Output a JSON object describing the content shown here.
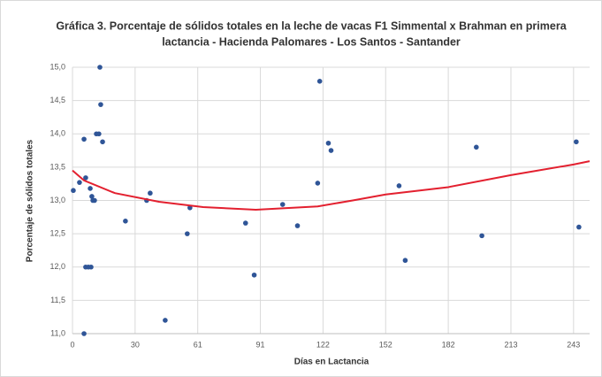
{
  "chart_data": {
    "type": "scatter",
    "title": [
      "Gráfica 3. Porcentaje de sólidos totales en la leche de vacas F1 Simmental  x Brahman en primera",
      "lactancia - Hacienda Palomares - Los Santos - Santander"
    ],
    "x_label": "Días en Lactancia",
    "y_label": "Porcentaje de sólidos totales",
    "xlim": [
      0,
      251
    ],
    "ylim": [
      11,
      15
    ],
    "xticks": [
      0,
      {
        "value": 30.4,
        "label": "30"
      },
      {
        "value": 60.8,
        "label": "61"
      },
      {
        "value": 91.2,
        "label": "91"
      },
      {
        "value": 121.6,
        "label": "122"
      },
      152,
      {
        "value": 182.4,
        "label": "182"
      },
      {
        "value": 212.8,
        "label": "213"
      },
      {
        "value": 243.2,
        "label": "243"
      }
    ],
    "yticks": [
      {
        "value": 11,
        "label": "11,0"
      },
      {
        "value": 11.5,
        "label": "11,5"
      },
      {
        "value": 12,
        "label": "12,0"
      },
      {
        "value": 12.5,
        "label": "12,5"
      },
      {
        "value": 13,
        "label": "13,0"
      },
      {
        "value": 13.5,
        "label": "13,5"
      },
      {
        "value": 14,
        "label": "14,0"
      },
      {
        "value": 14.5,
        "label": "14,5"
      },
      {
        "value": 15,
        "label": "15,0"
      }
    ],
    "grid": true,
    "color": "#2f5597",
    "x": [
      0.4,
      3.4,
      5.6,
      6.4,
      5.6,
      6.4,
      7.7,
      9,
      8.6,
      9.4,
      9.9,
      10.7,
      11.6,
      12.8,
      13.3,
      13.7,
      14.6,
      25.7,
      36,
      37.7,
      45,
      55.7,
      57,
      84,
      88.2,
      102,
      109.2,
      119,
      120,
      124.2,
      125.5,
      158.5,
      161.5,
      196,
      198.7,
      244.5,
      245.8
    ],
    "values": [
      13.15,
      13.27,
      13.92,
      13.34,
      11.0,
      12.0,
      12.0,
      12.0,
      13.18,
      13.06,
      13.0,
      13.0,
      14.0,
      14.0,
      15.0,
      14.44,
      13.88,
      12.69,
      13.0,
      13.11,
      11.2,
      12.5,
      12.89,
      12.66,
      11.88,
      12.94,
      12.62,
      13.26,
      14.79,
      13.86,
      13.75,
      13.22,
      12.1,
      13.8,
      12.47,
      13.88,
      12.6
    ],
    "trendline": {
      "color": "#e3202f",
      "x": [
        0,
        5.6,
        20.6,
        42,
        63.4,
        89,
        119,
        136,
        152,
        182.4,
        212.8,
        243.2,
        251
      ],
      "values": [
        13.45,
        13.3,
        13.11,
        12.98,
        12.9,
        12.86,
        12.91,
        13.0,
        13.09,
        13.2,
        13.38,
        13.54,
        13.59
      ]
    }
  }
}
